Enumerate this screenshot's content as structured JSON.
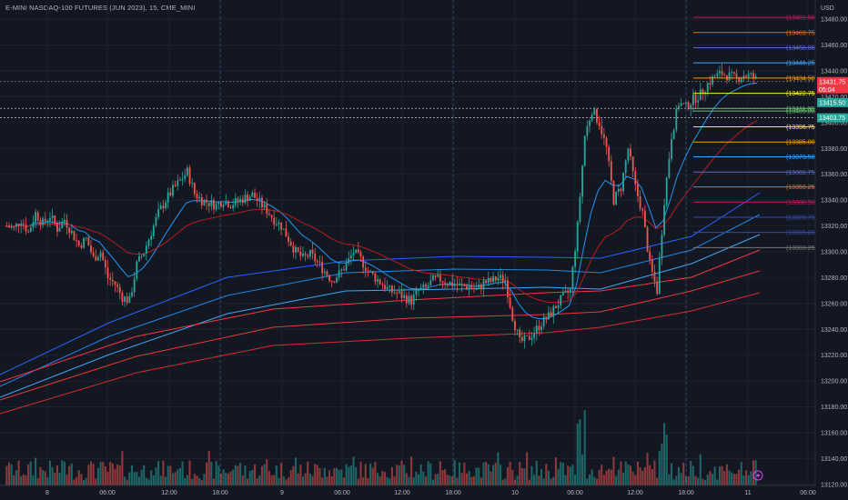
{
  "header": {
    "title": "E-MINI NASDAQ-100 FUTURES (JUN 2023), 15, CME_MINI",
    "currency": "USD"
  },
  "chart_data": {
    "type": "candlestick",
    "symbol": "E-MINI NASDAQ-100 FUTURES (JUN 2023)",
    "interval": "15",
    "exchange": "CME_MINI",
    "ylim": [
      13110,
      13490
    ],
    "y_ticks": [
      13120,
      13140,
      13160,
      13180,
      13200,
      13220,
      13240,
      13260,
      13280,
      13300,
      13320,
      13340,
      13360,
      13380,
      13400,
      13420,
      13440,
      13460,
      13480
    ],
    "x_ticks": [
      "8",
      "06:00",
      "12:00",
      "18:00",
      "9",
      "06:00",
      "12:00",
      "18:00",
      "10",
      "06:00",
      "12:00",
      "18:00",
      "11",
      "06:00"
    ],
    "levels": [
      {
        "value": 13481.5,
        "color": "#c2185b"
      },
      {
        "value": 13469.75,
        "color": "#ef6c00"
      },
      {
        "value": 13458.0,
        "color": "#5c6bc0"
      },
      {
        "value": 13446.25,
        "color": "#42a5f5"
      },
      {
        "value": 13434.5,
        "color": "#ff9800"
      },
      {
        "value": 13422.75,
        "color": "#ffeb3b"
      },
      {
        "value": 13411.0,
        "color": "#66bb6a"
      },
      {
        "value": 13409.0,
        "color": "#66bb6a"
      },
      {
        "value": 13396.75,
        "color": "#ffeb3b"
      },
      {
        "value": 13385.0,
        "color": "#ff9800"
      },
      {
        "value": 13373.5,
        "color": "#42a5f5"
      },
      {
        "value": 13361.75,
        "color": "#5c6bc0"
      },
      {
        "value": 13350.25,
        "color": "#ef6c00"
      },
      {
        "value": 13338.5,
        "color": "#c2185b"
      },
      {
        "value": 13326.75,
        "color": "#3949ab"
      },
      {
        "value": 13315.0,
        "color": "#3949ab"
      },
      {
        "value": 13303.25,
        "color": "#777777"
      }
    ],
    "price_tags": [
      {
        "value": "13431.75",
        "sub": "05:04",
        "color": "#f23645"
      },
      {
        "value": "13415.50",
        "color": "#26a69a"
      },
      {
        "value": "13403.75",
        "color": "#26a69a"
      }
    ],
    "ohlc_path": [
      13320,
      13318,
      13325,
      13315,
      13330,
      13322,
      13328,
      13318,
      13325,
      13315,
      13305,
      13310,
      13295,
      13300,
      13280,
      13275,
      13265,
      13262,
      13290,
      13300,
      13315,
      13330,
      13340,
      13348,
      13355,
      13362,
      13345,
      13340,
      13338,
      13336,
      13340,
      13337,
      13339,
      13342,
      13344,
      13338,
      13332,
      13325,
      13320,
      13310,
      13300,
      13295,
      13298,
      13292,
      13285,
      13278,
      13283,
      13290,
      13300,
      13294,
      13285,
      13280,
      13275,
      13270,
      13268,
      13265,
      13262,
      13270,
      13272,
      13278,
      13279,
      13276,
      13275,
      13273,
      13274,
      13270,
      13276,
      13277,
      13280,
      13278,
      13250,
      13230,
      13232,
      13238,
      13245,
      13250,
      13258,
      13265,
      13270,
      13320,
      13390,
      13410,
      13400,
      13380,
      13340,
      13350,
      13380,
      13350,
      13330,
      13290,
      13270,
      13340,
      13390,
      13415,
      13412,
      13418,
      13422,
      13430,
      13436,
      13438,
      13436,
      13434,
      13437,
      13436,
      13432
    ]
  }
}
